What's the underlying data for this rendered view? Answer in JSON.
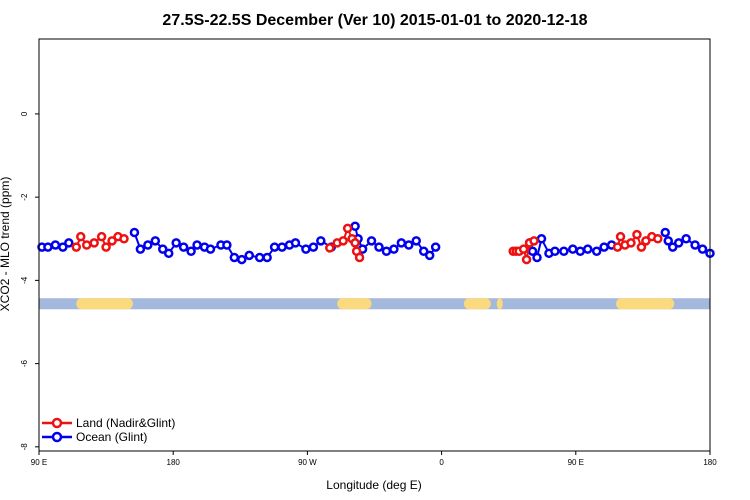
{
  "chart_data": {
    "type": "line",
    "title": "27.5S-22.5S December (Ver 10)   2015-01-01 to 2020-12-18",
    "xlabel": "Longitude (deg E)",
    "ylabel": "XCO2 - MLO trend (ppm)",
    "xlim": [
      90,
      540
    ],
    "ylim": [
      -8.1,
      1.8
    ],
    "x_ticks": [
      {
        "value": 90,
        "label": "90 E"
      },
      {
        "value": 180,
        "label": "180"
      },
      {
        "value": 270,
        "label": "90 W"
      },
      {
        "value": 360,
        "label": "0"
      },
      {
        "value": 450,
        "label": "90 E"
      },
      {
        "value": 540,
        "label": "180"
      }
    ],
    "y_ticks": [
      {
        "value": 0,
        "label": "0"
      },
      {
        "value": -2,
        "label": "-2"
      },
      {
        "value": -4,
        "label": "-4"
      },
      {
        "value": -6,
        "label": "-6"
      },
      {
        "value": -8,
        "label": "-8"
      }
    ],
    "land_bar": {
      "y_center": -4.55,
      "ocean_color": "#a3b8dc",
      "land_color": "#fbd97d",
      "land_ranges": [
        [
          115,
          153
        ],
        [
          290,
          313
        ],
        [
          375,
          393
        ],
        [
          397,
          401
        ],
        [
          477,
          516
        ]
      ]
    },
    "series": [
      {
        "name": "Land (Nadir&Glint)",
        "color": "#ee1111",
        "x": [
          115,
          118,
          122,
          127,
          132,
          135,
          139,
          143,
          147,
          285,
          290,
          294,
          297,
          300,
          302,
          303,
          305,
          408,
          410,
          412,
          415,
          417,
          419,
          422,
          478,
          480,
          483,
          487,
          491,
          494,
          497,
          501,
          505
        ],
        "values": [
          -3.2,
          -2.95,
          -3.15,
          -3.1,
          -2.95,
          -3.2,
          -3.05,
          -2.95,
          -3.0,
          -3.22,
          -3.1,
          -3.05,
          -2.75,
          -3.0,
          -3.1,
          -3.3,
          -3.45,
          -3.3,
          -3.3,
          -3.3,
          -3.25,
          -3.5,
          -3.1,
          -3.05,
          -3.2,
          -2.95,
          -3.15,
          -3.1,
          -2.9,
          -3.2,
          -3.05,
          -2.95,
          -3.0
        ]
      },
      {
        "name": "Ocean (Glint)",
        "color": "#0000ee",
        "x": [
          92,
          96,
          101,
          106,
          110,
          154,
          158,
          163,
          168,
          173,
          177,
          182,
          187,
          192,
          196,
          201,
          205,
          212,
          216,
          221,
          226,
          231,
          238,
          243,
          248,
          253,
          258,
          262,
          269,
          274,
          279,
          286,
          302,
          304,
          307,
          313,
          318,
          323,
          328,
          333,
          338,
          343,
          348,
          352,
          356,
          419,
          421,
          424,
          427,
          432,
          436,
          442,
          448,
          453,
          458,
          464,
          469,
          474,
          510,
          512,
          515,
          519,
          524,
          530,
          535,
          540
        ],
        "values": [
          -3.2,
          -3.2,
          -3.15,
          -3.2,
          -3.1,
          -2.85,
          -3.25,
          -3.15,
          -3.05,
          -3.25,
          -3.35,
          -3.1,
          -3.2,
          -3.3,
          -3.15,
          -3.2,
          -3.25,
          -3.15,
          -3.15,
          -3.45,
          -3.5,
          -3.4,
          -3.45,
          -3.45,
          -3.2,
          -3.2,
          -3.15,
          -3.1,
          -3.25,
          -3.2,
          -3.05,
          -3.2,
          -2.7,
          -3.0,
          -3.25,
          -3.05,
          -3.2,
          -3.3,
          -3.25,
          -3.1,
          -3.15,
          -3.05,
          -3.3,
          -3.4,
          -3.2,
          -3.1,
          -3.3,
          -3.45,
          -3.0,
          -3.35,
          -3.3,
          -3.3,
          -3.25,
          -3.3,
          -3.25,
          -3.3,
          -3.2,
          -3.15,
          -2.85,
          -3.05,
          -3.2,
          -3.1,
          -3.0,
          -3.15,
          -3.25,
          -3.35
        ]
      }
    ],
    "legend_position": "bottom-left"
  }
}
